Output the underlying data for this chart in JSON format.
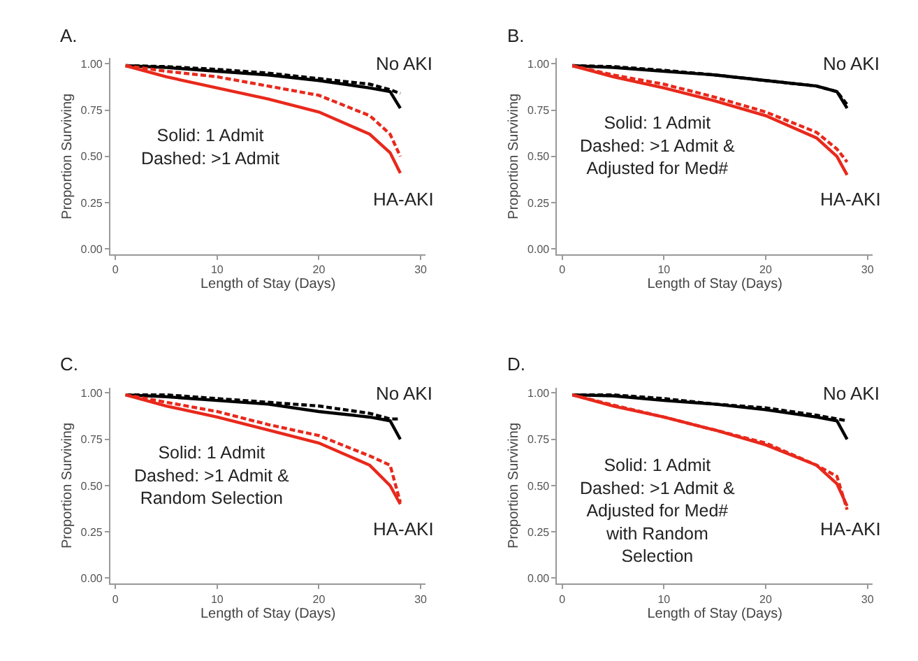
{
  "chart_data": [
    {
      "type": "line",
      "title": "A.",
      "xlabel": "Length of Stay (Days)",
      "ylabel": "Proportion Surviving",
      "x": [
        1,
        5,
        10,
        15,
        20,
        25,
        27,
        28
      ],
      "xlim": [
        -0.5,
        30.5
      ],
      "xticks": [
        0,
        10,
        20,
        30
      ],
      "ylim": [
        -0.03,
        1.03
      ],
      "yticks": [
        {
          "value": 0,
          "label": "0.00"
        },
        {
          "value": 0.25,
          "label": "0.25"
        },
        {
          "value": 0.5,
          "label": "0.50"
        },
        {
          "value": 0.75,
          "label": "0.75"
        },
        {
          "value": 1,
          "label": "1.00"
        }
      ],
      "series": [
        {
          "color": "#000000",
          "line_style": "solid",
          "values": [
            0.99,
            0.98,
            0.96,
            0.94,
            0.91,
            0.87,
            0.85,
            0.76
          ]
        },
        {
          "color": "#000000",
          "line_style": "dashed",
          "values": [
            0.99,
            0.985,
            0.97,
            0.95,
            0.92,
            0.89,
            0.86,
            0.84
          ]
        },
        {
          "color": "#e8291c",
          "line_style": "solid",
          "values": [
            0.99,
            0.93,
            0.87,
            0.81,
            0.74,
            0.62,
            0.52,
            0.41
          ]
        },
        {
          "color": "#e8291c",
          "line_style": "dashed",
          "values": [
            0.99,
            0.96,
            0.93,
            0.88,
            0.83,
            0.72,
            0.62,
            0.5
          ]
        }
      ],
      "annotations": [
        "No AKI",
        "HA-AKI",
        "Solid: 1 Admit\nDashed: >1 Admit"
      ]
    },
    {
      "type": "line",
      "title": "B.",
      "xlabel": "Length of Stay (Days)",
      "ylabel": "Proportion Surviving",
      "x": [
        1,
        5,
        10,
        15,
        20,
        25,
        27,
        28
      ],
      "xlim": [
        -0.5,
        30.5
      ],
      "xticks": [
        0,
        10,
        20,
        30
      ],
      "ylim": [
        -0.03,
        1.03
      ],
      "yticks": [
        {
          "value": 0,
          "label": "0.00"
        },
        {
          "value": 0.25,
          "label": "0.25"
        },
        {
          "value": 0.5,
          "label": "0.50"
        },
        {
          "value": 0.75,
          "label": "0.75"
        },
        {
          "value": 1,
          "label": "1.00"
        }
      ],
      "series": [
        {
          "color": "#000000",
          "line_style": "solid",
          "values": [
            0.99,
            0.98,
            0.96,
            0.94,
            0.91,
            0.88,
            0.85,
            0.76
          ]
        },
        {
          "color": "#000000",
          "line_style": "dashed",
          "values": [
            0.99,
            0.985,
            0.965,
            0.94,
            0.91,
            0.88,
            0.85,
            0.78
          ]
        },
        {
          "color": "#e8291c",
          "line_style": "solid",
          "values": [
            0.99,
            0.93,
            0.87,
            0.8,
            0.72,
            0.6,
            0.5,
            0.4
          ]
        },
        {
          "color": "#e8291c",
          "line_style": "dashed",
          "values": [
            0.99,
            0.94,
            0.89,
            0.82,
            0.74,
            0.63,
            0.54,
            0.47
          ]
        }
      ],
      "annotations": [
        "No AKI",
        "HA-AKI",
        "Solid: 1 Admit\nDashed: >1 Admit &\nAdjusted for Med#"
      ]
    },
    {
      "type": "line",
      "title": "C.",
      "xlabel": "Length of Stay (Days)",
      "ylabel": "Proportion Surviving",
      "x": [
        1,
        5,
        10,
        15,
        20,
        25,
        27,
        28
      ],
      "xlim": [
        -0.5,
        30.5
      ],
      "xticks": [
        0,
        10,
        20,
        30
      ],
      "ylim": [
        -0.03,
        1.03
      ],
      "yticks": [
        {
          "value": 0,
          "label": "0.00"
        },
        {
          "value": 0.25,
          "label": "0.25"
        },
        {
          "value": 0.5,
          "label": "0.50"
        },
        {
          "value": 0.75,
          "label": "0.75"
        },
        {
          "value": 1,
          "label": "1.00"
        }
      ],
      "series": [
        {
          "color": "#000000",
          "line_style": "solid",
          "values": [
            0.99,
            0.98,
            0.96,
            0.94,
            0.9,
            0.87,
            0.85,
            0.75
          ]
        },
        {
          "color": "#000000",
          "line_style": "dashed",
          "values": [
            0.99,
            0.99,
            0.97,
            0.95,
            0.93,
            0.89,
            0.86,
            0.86
          ]
        },
        {
          "color": "#e8291c",
          "line_style": "solid",
          "values": [
            0.99,
            0.93,
            0.87,
            0.8,
            0.73,
            0.61,
            0.5,
            0.4
          ]
        },
        {
          "color": "#e8291c",
          "line_style": "dashed",
          "values": [
            0.99,
            0.95,
            0.9,
            0.83,
            0.77,
            0.66,
            0.61,
            0.41
          ]
        }
      ],
      "annotations": [
        "No AKI",
        "HA-AKI",
        "Solid: 1 Admit\nDashed: >1 Admit &\nRandom Selection"
      ]
    },
    {
      "type": "line",
      "title": "D.",
      "xlabel": "Length of Stay (Days)",
      "ylabel": "Proportion Surviving",
      "x": [
        1,
        5,
        10,
        15,
        20,
        25,
        27,
        28
      ],
      "xlim": [
        -0.5,
        30.5
      ],
      "xticks": [
        0,
        10,
        20,
        30
      ],
      "ylim": [
        -0.03,
        1.03
      ],
      "yticks": [
        {
          "value": 0,
          "label": "0.00"
        },
        {
          "value": 0.25,
          "label": "0.25"
        },
        {
          "value": 0.5,
          "label": "0.50"
        },
        {
          "value": 0.75,
          "label": "0.75"
        },
        {
          "value": 1,
          "label": "1.00"
        }
      ],
      "series": [
        {
          "color": "#000000",
          "line_style": "solid",
          "values": [
            0.99,
            0.985,
            0.96,
            0.94,
            0.91,
            0.87,
            0.85,
            0.75
          ]
        },
        {
          "color": "#000000",
          "line_style": "dashed",
          "values": [
            0.99,
            0.99,
            0.97,
            0.94,
            0.92,
            0.88,
            0.86,
            0.85
          ]
        },
        {
          "color": "#e8291c",
          "line_style": "solid",
          "values": [
            0.99,
            0.93,
            0.87,
            0.8,
            0.72,
            0.61,
            0.51,
            0.39
          ]
        },
        {
          "color": "#e8291c",
          "line_style": "dashed",
          "values": [
            0.99,
            0.935,
            0.87,
            0.8,
            0.73,
            0.61,
            0.55,
            0.37
          ]
        }
      ],
      "annotations": [
        "No AKI",
        "HA-AKI",
        "Solid: 1 Admit\nDashed: >1 Admit &\nAdjusted for Med#\nwith Random\nSelection"
      ]
    }
  ]
}
